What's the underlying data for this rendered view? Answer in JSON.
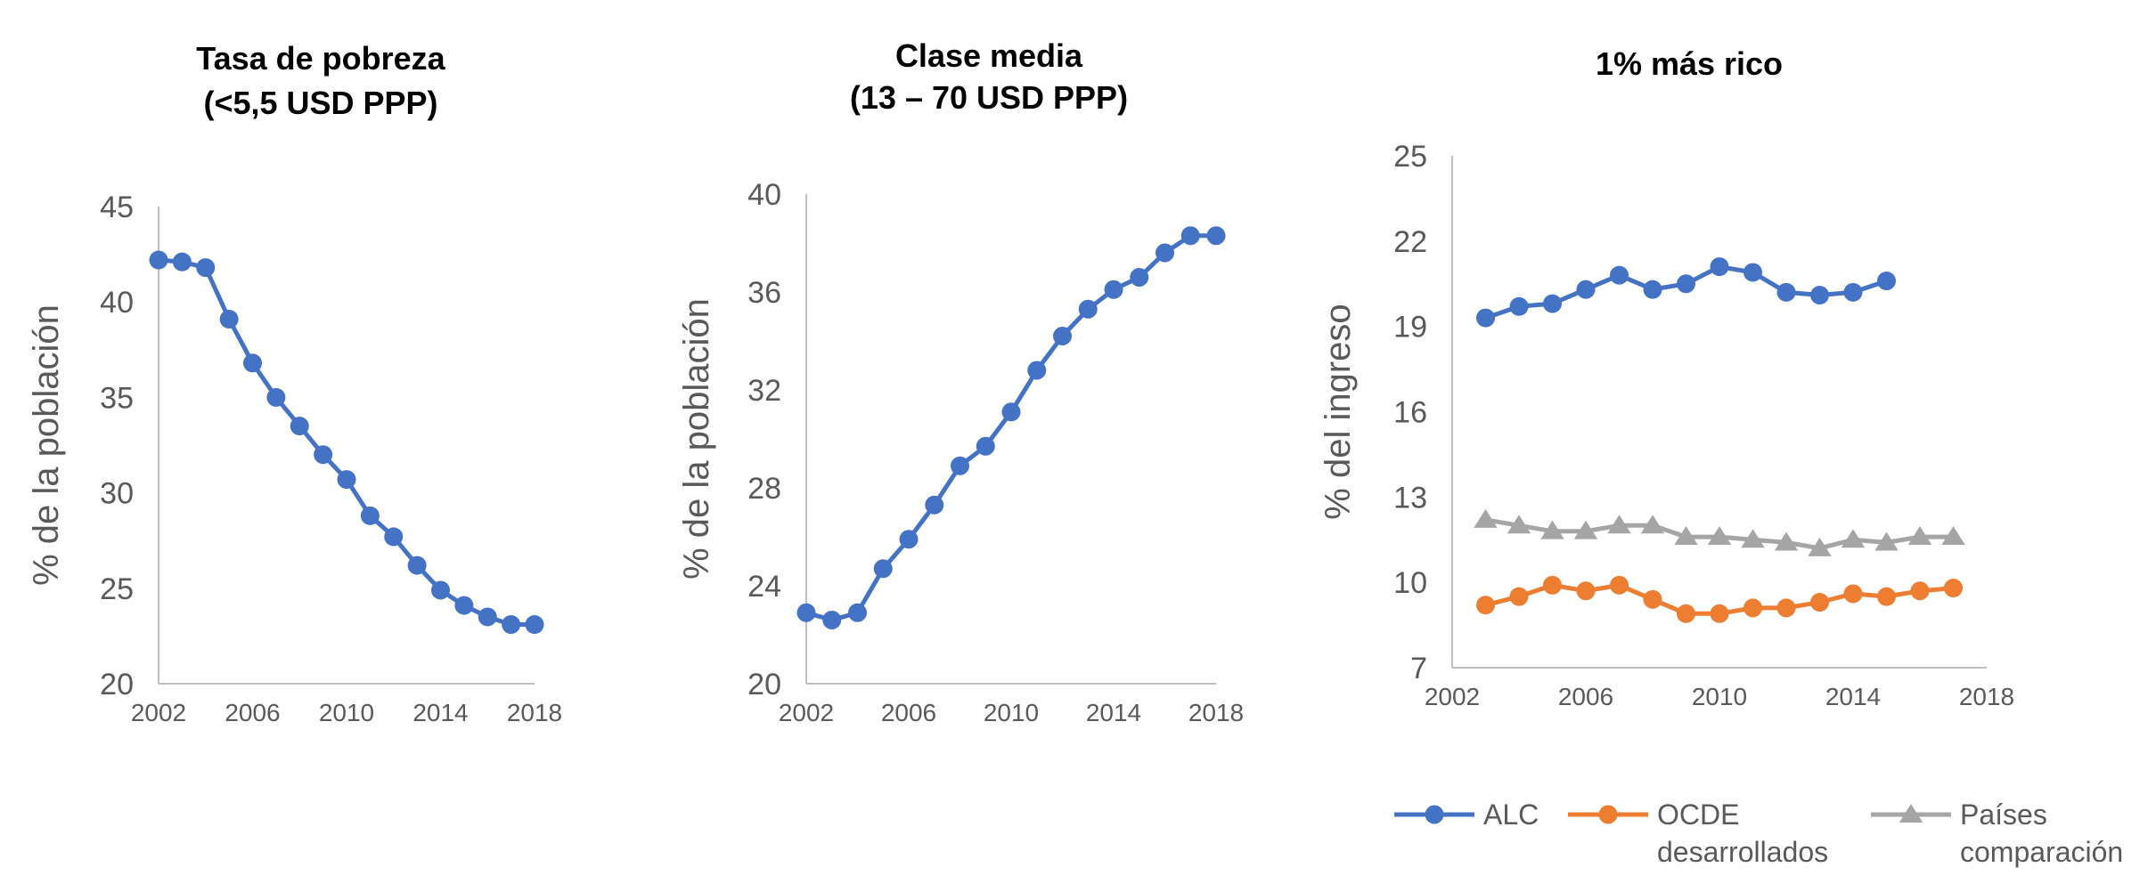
{
  "chart_data": [
    {
      "type": "line",
      "title_lines": [
        "Tasa de pobreza",
        "(<5,5 USD PPP)"
      ],
      "ylabel": "% de la población",
      "xlabel": "",
      "xlim": [
        2002,
        2018
      ],
      "ylim": [
        20,
        45
      ],
      "x_ticks": [
        "2002",
        "2006",
        "2010",
        "2014",
        "2018"
      ],
      "y_ticks": [
        "20",
        "25",
        "30",
        "35",
        "40",
        "45"
      ],
      "series": [
        {
          "name": "Tasa de pobreza",
          "color": "#4472C4",
          "marker": "circle",
          "x": [
            2002,
            2003,
            2004,
            2005,
            2006,
            2007,
            2008,
            2009,
            2010,
            2011,
            2012,
            2013,
            2014,
            2015,
            2016,
            2017,
            2018
          ],
          "values": [
            42.2,
            42.1,
            41.8,
            39.1,
            36.8,
            35.0,
            33.5,
            32.0,
            30.7,
            28.8,
            27.7,
            26.2,
            24.9,
            24.1,
            23.5,
            23.1,
            23.1
          ]
        }
      ]
    },
    {
      "type": "line",
      "title_lines": [
        "Clase media",
        "(13 – 70 USD PPP)"
      ],
      "ylabel": "% de la población",
      "xlabel": "",
      "xlim": [
        2002,
        2018
      ],
      "ylim": [
        20,
        40
      ],
      "x_ticks": [
        "2002",
        "2006",
        "2010",
        "2014",
        "2018"
      ],
      "y_ticks": [
        "20",
        "24",
        "28",
        "32",
        "36",
        "40"
      ],
      "series": [
        {
          "name": "Clase media",
          "color": "#4472C4",
          "marker": "circle",
          "x": [
            2002,
            2003,
            2004,
            2005,
            2006,
            2007,
            2008,
            2009,
            2010,
            2011,
            2012,
            2013,
            2014,
            2015,
            2016,
            2017,
            2018
          ],
          "values": [
            22.9,
            22.6,
            22.9,
            24.7,
            25.9,
            27.3,
            28.9,
            29.7,
            31.1,
            32.8,
            34.2,
            35.3,
            36.1,
            36.6,
            37.6,
            38.3,
            38.3
          ]
        }
      ]
    },
    {
      "type": "line",
      "title_lines": [
        "1% más rico"
      ],
      "ylabel": "% del ingreso",
      "xlabel": "",
      "xlim": [
        2002,
        2018
      ],
      "ylim": [
        7,
        25
      ],
      "x_ticks": [
        "2002",
        "2006",
        "2010",
        "2014",
        "2018"
      ],
      "y_ticks": [
        "7",
        "10",
        "13",
        "16",
        "19",
        "22",
        "25"
      ],
      "legend_position": "bottom",
      "series": [
        {
          "name": "ALC",
          "legend_lines": [
            "ALC"
          ],
          "color": "#4472C4",
          "marker": "circle",
          "x": [
            2003,
            2004,
            2005,
            2006,
            2007,
            2008,
            2009,
            2010,
            2011,
            2012,
            2013,
            2014,
            2015
          ],
          "values": [
            19.3,
            19.7,
            19.8,
            20.3,
            20.8,
            20.3,
            20.5,
            21.1,
            20.9,
            20.2,
            20.1,
            20.2,
            20.6
          ]
        },
        {
          "name": "OCDE desarrollados",
          "legend_lines": [
            "OCDE",
            "desarrollados"
          ],
          "color": "#ED7D31",
          "marker": "circle",
          "x": [
            2003,
            2004,
            2005,
            2006,
            2007,
            2008,
            2009,
            2010,
            2011,
            2012,
            2013,
            2014,
            2015,
            2016,
            2017
          ],
          "values": [
            9.2,
            9.5,
            9.9,
            9.7,
            9.9,
            9.4,
            8.9,
            8.9,
            9.1,
            9.1,
            9.3,
            9.6,
            9.5,
            9.7,
            9.8
          ]
        },
        {
          "name": "Países comparación",
          "legend_lines": [
            "Países",
            "comparación"
          ],
          "color": "#A5A5A5",
          "marker": "triangle",
          "x": [
            2003,
            2004,
            2005,
            2006,
            2007,
            2008,
            2009,
            2010,
            2011,
            2012,
            2013,
            2014,
            2015,
            2016,
            2017
          ],
          "values": [
            12.2,
            12.0,
            11.8,
            11.8,
            12.0,
            12.0,
            11.6,
            11.6,
            11.5,
            11.4,
            11.2,
            11.5,
            11.4,
            11.6,
            11.6
          ]
        }
      ]
    }
  ]
}
